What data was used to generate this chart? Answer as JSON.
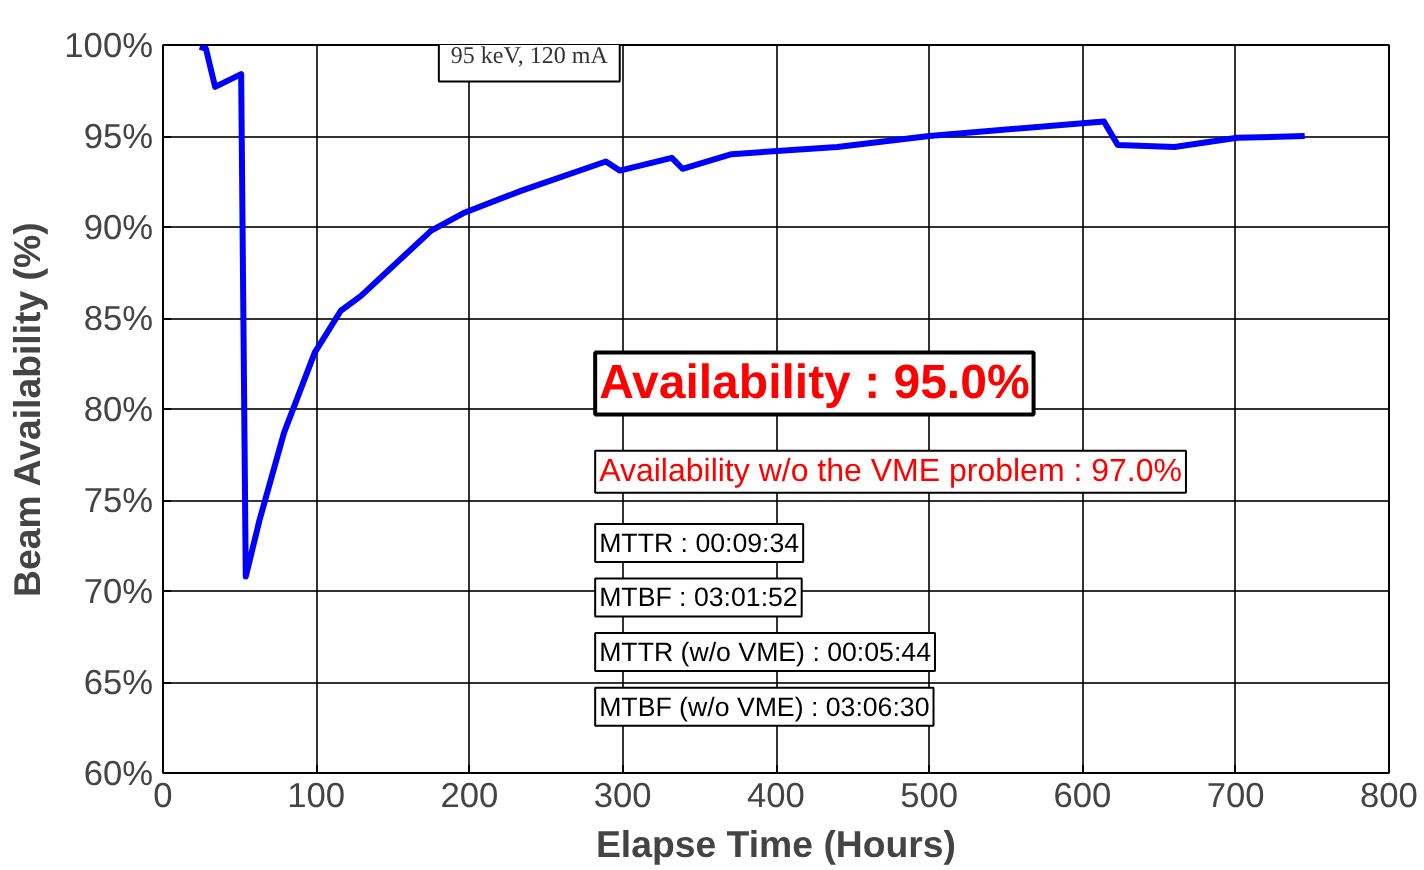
{
  "chart_data": {
    "type": "line",
    "xlabel": "Elapse Time (Hours)",
    "ylabel": "Beam Availability (%)",
    "x": [
      24,
      28,
      34,
      51,
      54,
      63,
      79,
      99,
      116,
      129,
      175,
      197,
      234,
      289,
      298,
      332,
      339,
      371,
      440,
      500,
      614,
      623,
      660,
      701,
      745
    ],
    "series": [
      {
        "color": "#0000ff",
        "values": [
          99.9,
          99.8,
          97.7,
          98.4,
          70.8,
          73.9,
          78.7,
          83.1,
          85.4,
          86.2,
          89.8,
          90.8,
          92.0,
          93.6,
          93.1,
          93.8,
          93.2,
          94.0,
          94.4,
          95.0,
          95.8,
          94.5,
          94.4,
          94.9,
          95.0
        ]
      }
    ],
    "xlim": [
      0,
      800
    ],
    "xticks": [
      0,
      100,
      200,
      300,
      400,
      500,
      600,
      700,
      800
    ],
    "ylim": [
      60,
      100
    ],
    "yticks": [
      {
        "value": 60,
        "label": "60%"
      },
      {
        "value": 65,
        "label": "65%"
      },
      {
        "value": 70,
        "label": "70%"
      },
      {
        "value": 75,
        "label": "75%"
      },
      {
        "value": 80,
        "label": "80%"
      },
      {
        "value": 85,
        "label": "85%"
      },
      {
        "value": 90,
        "label": "90%"
      },
      {
        "value": 95,
        "label": "95%"
      },
      {
        "value": 100,
        "label": "100%"
      }
    ],
    "grid": true,
    "marker": "none",
    "line_style": "solid",
    "annotations": [
      "95 keV, 120 mA",
      "Availability : 95.0%",
      "Availability w/o the VME problem : 97.0%",
      "MTTR : 00:09:34",
      "MTBF : 03:01:52",
      "MTTR (w/o VME) : 00:05:44",
      "MTBF (w/o VME) : 03:06:30"
    ]
  }
}
